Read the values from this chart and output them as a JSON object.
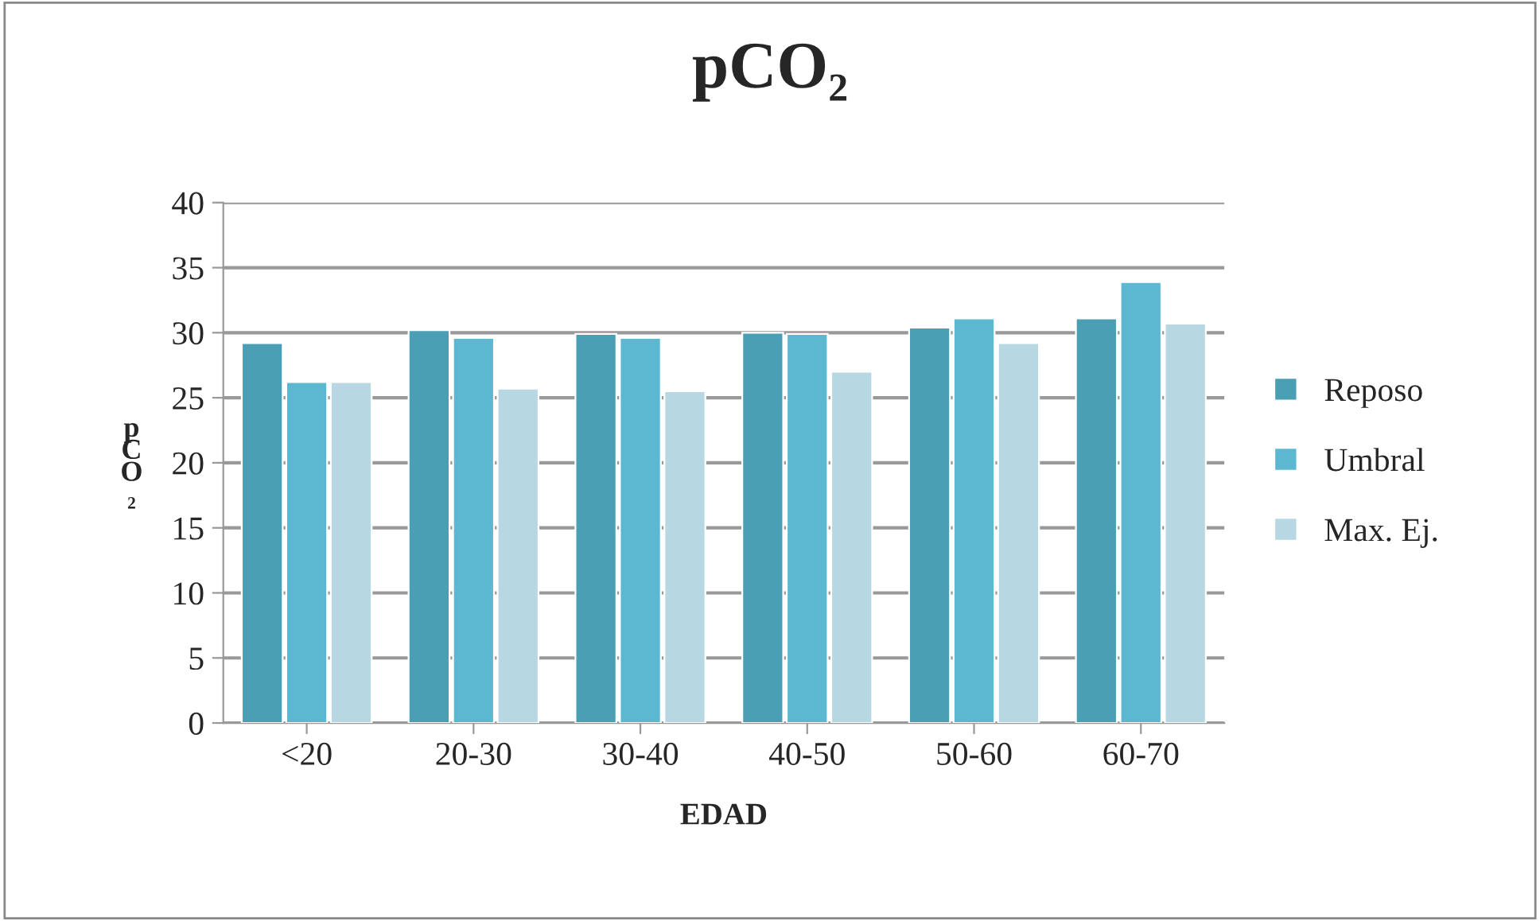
{
  "chart_data": {
    "type": "bar",
    "title": "pCO₂",
    "xlabel": "EDAD",
    "ylabel": "pCO₂",
    "categories": [
      "<20",
      "20-30",
      "30-40",
      "40-50",
      "50-60",
      "60-70"
    ],
    "series": [
      {
        "name": "Reposo",
        "color": "#4a9fb5",
        "values": [
          29.2,
          30.2,
          29.9,
          30.0,
          30.4,
          31.1
        ]
      },
      {
        "name": "Umbral",
        "color": "#5bb8d0",
        "values": [
          26.2,
          29.6,
          29.6,
          29.9,
          31.1,
          33.9
        ]
      },
      {
        "name": "Max. Ej.",
        "color": "#b7d7e3",
        "values": [
          26.2,
          25.7,
          25.5,
          27.0,
          29.2,
          30.7
        ]
      }
    ],
    "ylim": [
      0,
      40
    ],
    "yticks": [
      0,
      5,
      10,
      15,
      20,
      25,
      30,
      35,
      40
    ],
    "grid": "y",
    "legend": "right"
  }
}
